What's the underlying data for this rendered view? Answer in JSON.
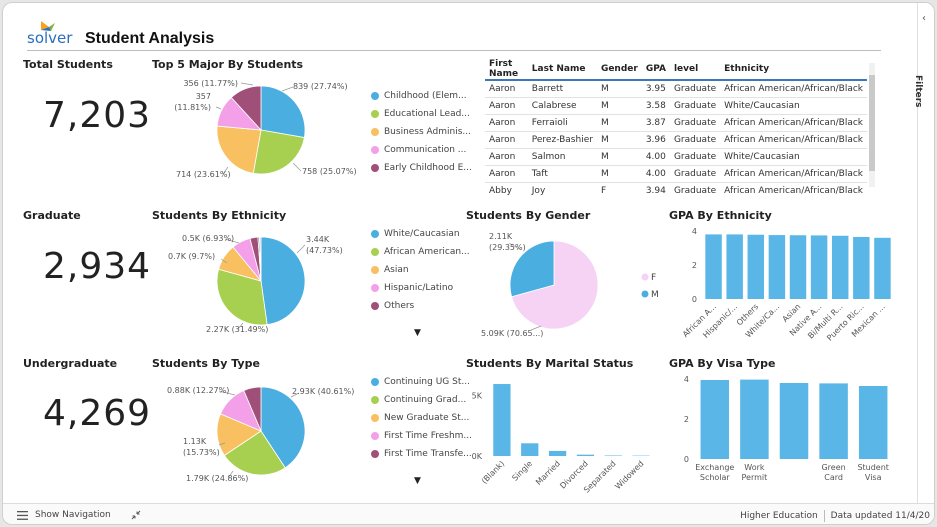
{
  "header": {
    "logo_text": "solver",
    "title": "Student Analysis"
  },
  "kpis": [
    {
      "label": "Total Students",
      "value": "7,203"
    },
    {
      "label": "Graduate",
      "value": "2,934"
    },
    {
      "label": "Undergraduate",
      "value": "4,269"
    }
  ],
  "charts": {
    "major": {
      "title": "Top 5 Major By Students",
      "slices": [
        {
          "label": "Childhood (Elem...",
          "value": 839,
          "color": "#4aaee0",
          "data_label": "839 (27.74%)"
        },
        {
          "label": "Educational Lead...",
          "value": 758,
          "color": "#a8d050",
          "data_label": "758 (25.07%)"
        },
        {
          "label": "Business Adminis...",
          "value": 714,
          "color": "#f8c060",
          "data_label": "714 (23.61%)"
        },
        {
          "label": "Communication ...",
          "value": 357,
          "color": "#f4a0e8",
          "data_label": "357 (11.81%)"
        },
        {
          "label": "Early Childhood E...",
          "value": 356,
          "color": "#a05078",
          "data_label": "356 (11.77%)"
        }
      ]
    },
    "ethnicity": {
      "title": "Students By Ethnicity",
      "slices": [
        {
          "label": "White/Caucasian",
          "value": 3.44,
          "color": "#4aaee0",
          "data_label": "3.44K (47.73%)"
        },
        {
          "label": "African American...",
          "value": 2.27,
          "color": "#a8d050",
          "data_label": "2.27K (31.49%)"
        },
        {
          "label": "Asian",
          "value": 0.7,
          "color": "#f8c060",
          "data_label": "0.7K (9.7%)"
        },
        {
          "label": "Hispanic/Latino",
          "value": 0.5,
          "color": "#f4a0e8",
          "data_label": "0.5K (6.93%)"
        },
        {
          "label": "Others",
          "value": 0.21,
          "color": "#a05078",
          "data_label": ""
        },
        {
          "label": "",
          "value": 0.04,
          "color": "#6a6a8a",
          "data_label": ""
        },
        {
          "label": "",
          "value": 0.04,
          "color": "#cfcfcf",
          "data_label": ""
        }
      ]
    },
    "type": {
      "title": "Students By Type",
      "slices": [
        {
          "label": "Continuing UG St...",
          "value": 2.93,
          "color": "#4aaee0",
          "data_label": "2.93K (40.61%)"
        },
        {
          "label": "Continuing Grad...",
          "value": 1.79,
          "color": "#a8d050",
          "data_label": "1.79K (24.86%)"
        },
        {
          "label": "New Graduate St...",
          "value": 1.13,
          "color": "#f8c060",
          "data_label": "1.13K (15.73%)"
        },
        {
          "label": "First Time Freshm...",
          "value": 0.88,
          "color": "#f4a0e8",
          "data_label": "0.88K (12.27%)"
        },
        {
          "label": "First Time Transfe...",
          "value": 0.46,
          "color": "#a05078",
          "data_label": ""
        }
      ]
    },
    "gender": {
      "title": "Students By Gender",
      "slices": [
        {
          "label": "F",
          "value": 5.09,
          "color": "#f6d2f4",
          "data_label": "5.09K (70.65...)"
        },
        {
          "label": "M",
          "value": 2.11,
          "color": "#4aaee0",
          "data_label": "2.11K (29.35%)"
        }
      ]
    },
    "marital": {
      "title": "Students By Marital Status",
      "ylim": [
        0,
        6200
      ],
      "yticks": [
        {
          "v": 0,
          "t": "0K"
        },
        {
          "v": 5000,
          "t": "5K"
        }
      ],
      "categories": [
        "(Blank)",
        "Single",
        "Married",
        "Divorced",
        "Separated",
        "Widowed"
      ],
      "values": [
        5950,
        1050,
        420,
        110,
        40,
        30
      ]
    },
    "gpa_ethnicity": {
      "title": "GPA By Ethnicity",
      "ylim": [
        0,
        4
      ],
      "yticks": [
        0,
        2,
        4
      ],
      "categories": [
        "African A...",
        "Hispanic/...",
        "Others",
        "White/Ca...",
        "Asian",
        "Native A...",
        "Bi/Multi R...",
        "Puerto Ric...",
        "Mexican ..."
      ],
      "values": [
        3.8,
        3.8,
        3.78,
        3.76,
        3.75,
        3.74,
        3.72,
        3.65,
        3.6
      ]
    },
    "gpa_visa": {
      "title": "GPA By Visa Type",
      "ylim": [
        0,
        4
      ],
      "yticks": [
        0,
        2,
        4
      ],
      "categories": [
        [
          "Exchange",
          "Scholar"
        ],
        [
          "Work",
          "Permit"
        ],
        [
          "",
          ""
        ],
        [
          "Green",
          "Card"
        ],
        [
          "Student",
          "Visa"
        ]
      ],
      "values": [
        3.95,
        3.97,
        3.8,
        3.78,
        3.65
      ]
    }
  },
  "table": {
    "headers": [
      "First Name",
      "Last Name",
      "Gender",
      "GPA",
      "level",
      "Ethnicity"
    ],
    "rows": [
      [
        "Aaron",
        "Barrett",
        "M",
        "3.95",
        "Graduate",
        "African American/African/Black"
      ],
      [
        "Aaron",
        "Calabrese",
        "M",
        "3.58",
        "Graduate",
        "White/Caucasian"
      ],
      [
        "Aaron",
        "Ferraioli",
        "M",
        "3.87",
        "Graduate",
        "African American/African/Black"
      ],
      [
        "Aaron",
        "Perez-Bashier",
        "M",
        "3.96",
        "Graduate",
        "African American/African/Black"
      ],
      [
        "Aaron",
        "Salmon",
        "M",
        "4.00",
        "Graduate",
        "White/Caucasian"
      ],
      [
        "Aaron",
        "Taft",
        "M",
        "4.00",
        "Graduate",
        "African American/African/Black"
      ],
      [
        "Abby",
        "Joy",
        "F",
        "3.94",
        "Graduate",
        "African American/African/Black"
      ]
    ]
  },
  "filters": {
    "label": "Filters"
  },
  "footer": {
    "show_navigation": "Show Navigation",
    "report_name": "Higher Education",
    "data_updated": "Data updated 11/4/20"
  }
}
